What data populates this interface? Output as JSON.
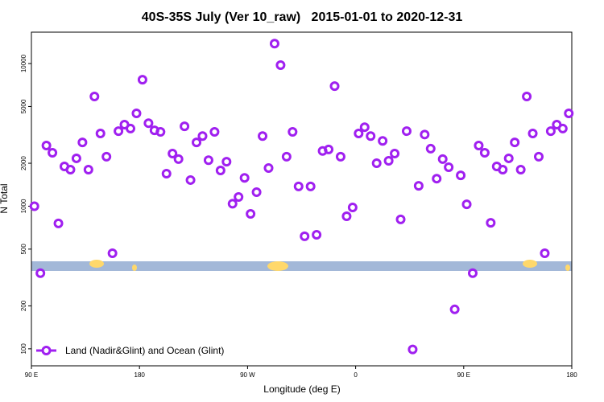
{
  "chart_data": {
    "type": "scatter",
    "title": "40S-35S July (Ver 10_raw)   2015-01-01 to 2020-12-31",
    "x_label": "Longitude (deg E)",
    "y_label": "N Total",
    "log_y": true,
    "legend": "bottom-left",
    "x": [
      92.5,
      97.5,
      102.5,
      107.5,
      112.5,
      117.5,
      122.5,
      127.5,
      132.5,
      137.5,
      142.5,
      147.5,
      152.5,
      157.5,
      162.5,
      167.5,
      172.5,
      177.5,
      182.5,
      187.5,
      192.5,
      197.5,
      202.5,
      207.5,
      212.5,
      217.5,
      222.5,
      227.5,
      232.5,
      237.5,
      242.5,
      247.5,
      252.5,
      257.5,
      262.5,
      267.5,
      272.5,
      277.5,
      282.5,
      287.5,
      292.5,
      297.5,
      302.5,
      307.5,
      312.5,
      317.5,
      322.5,
      327.5,
      332.5,
      337.5,
      342.5,
      347.5,
      352.5,
      357.5,
      362.5,
      367.5,
      372.5,
      377.5,
      382.5,
      387.5,
      392.5,
      397.5,
      402.5,
      407.5,
      412.5,
      417.5,
      422.5,
      427.5,
      432.5,
      437.5,
      442.5,
      447.5,
      452.5,
      457.5,
      462.5,
      467.5,
      472.5,
      477.5,
      482.5,
      487.5,
      492.5,
      497.5,
      502.5,
      507.5,
      512.5,
      517.5,
      522.5,
      527.5,
      532.5,
      537.5
    ],
    "series": [
      {
        "name": "Land (Nadir&Glint) and Ocean (Glint)",
        "color": "#a020f0",
        "values": [
          1000,
          339,
          2663,
          2370,
          757,
          1900,
          1805,
          2165,
          2800,
          1805,
          5880,
          3235,
          2225,
          468,
          3360,
          3730,
          3500,
          4475,
          7710,
          3820,
          3400,
          3320,
          1690,
          2340,
          2140,
          3630,
          1525,
          2800,
          3100,
          2100,
          3320,
          1780,
          2050,
          1040,
          1160,
          1580,
          884,
          1255,
          3100,
          1850,
          13800,
          9750,
          2225,
          3320,
          1375,
          615,
          1375,
          630,
          2440,
          2500,
          6950,
          2225,
          850,
          980,
          3235,
          3580,
          3100,
          2000,
          2870,
          2080,
          2340,
          808,
          3360,
          99,
          1390,
          3180,
          2530,
          1560,
          2140,
          1875,
          189,
          1645,
          1030,
          339,
          2663,
          2370,
          765,
          1900,
          1805,
          2165,
          2800,
          1805,
          5880,
          3235,
          2225,
          468,
          3360,
          3730,
          3500,
          4475
        ]
      }
    ],
    "xlim": [
      90,
      540
    ],
    "xticks": [
      {
        "value": 90,
        "label": "90 E"
      },
      180,
      {
        "value": 270,
        "label": "90 W"
      },
      {
        "value": 360,
        "label": "0"
      },
      {
        "value": 450,
        "label": "90 E"
      },
      {
        "value": 540,
        "label": "180"
      }
    ],
    "ylim": [
      76,
      16600
    ],
    "yticks": [
      100,
      200,
      500,
      1000,
      2000,
      5000,
      10000
    ]
  }
}
